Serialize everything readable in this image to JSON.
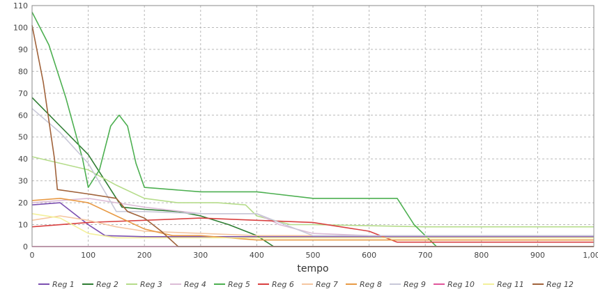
{
  "chart_data": {
    "type": "line",
    "xlabel": "tempo",
    "ylabel": "",
    "xlim": [
      0,
      1000
    ],
    "ylim": [
      0,
      110
    ],
    "xticks": [
      0,
      100,
      200,
      300,
      400,
      500,
      600,
      700,
      800,
      900,
      1000
    ],
    "xtick_labels": [
      "0",
      "100",
      "200",
      "300",
      "400",
      "500",
      "600",
      "700",
      "800",
      "900",
      "1,000"
    ],
    "yticks": [
      0,
      10,
      20,
      30,
      40,
      50,
      60,
      70,
      80,
      90,
      100,
      110
    ],
    "ytick_labels": [
      "0",
      "10",
      "20",
      "30",
      "40",
      "50",
      "60",
      "70",
      "80",
      "90",
      "100",
      "110"
    ],
    "grid": true,
    "legend_position": "bottom",
    "series": [
      {
        "name": "Reg 1",
        "color": "#7b4fb0",
        "points": [
          [
            0,
            19
          ],
          [
            50,
            20
          ],
          [
            100,
            10
          ],
          [
            130,
            5
          ],
          [
            200,
            4.5
          ],
          [
            300,
            4.5
          ],
          [
            400,
            4.5
          ],
          [
            500,
            4.5
          ],
          [
            600,
            4.5
          ],
          [
            700,
            4.5
          ],
          [
            800,
            4.5
          ],
          [
            900,
            4.5
          ],
          [
            1000,
            4.5
          ]
        ]
      },
      {
        "name": "Reg 2",
        "color": "#2e7d32",
        "points": [
          [
            0,
            68
          ],
          [
            50,
            55
          ],
          [
            100,
            42
          ],
          [
            130,
            30
          ],
          [
            160,
            18
          ],
          [
            200,
            17
          ],
          [
            260,
            16
          ],
          [
            300,
            14
          ],
          [
            350,
            10
          ],
          [
            400,
            5
          ],
          [
            430,
            0
          ],
          [
            1000,
            0
          ]
        ]
      },
      {
        "name": "Reg 3",
        "color": "#b5dc8a",
        "points": [
          [
            0,
            41
          ],
          [
            100,
            35
          ],
          [
            150,
            28
          ],
          [
            200,
            22
          ],
          [
            260,
            20
          ],
          [
            330,
            20
          ],
          [
            380,
            19
          ],
          [
            400,
            14
          ],
          [
            460,
            10
          ],
          [
            500,
            10
          ],
          [
            600,
            9.5
          ],
          [
            700,
            9
          ],
          [
            800,
            9
          ],
          [
            900,
            9
          ],
          [
            1000,
            9
          ]
        ]
      },
      {
        "name": "Reg 4",
        "color": "#dcbcd6",
        "points": [
          [
            0,
            20
          ],
          [
            100,
            22
          ],
          [
            200,
            18
          ],
          [
            300,
            15
          ],
          [
            400,
            15
          ],
          [
            440,
            10
          ],
          [
            500,
            6
          ],
          [
            600,
            5
          ],
          [
            700,
            5
          ],
          [
            800,
            5
          ],
          [
            900,
            5
          ],
          [
            1000,
            5
          ]
        ]
      },
      {
        "name": "Reg 5",
        "color": "#4caf50",
        "points": [
          [
            0,
            107
          ],
          [
            30,
            92
          ],
          [
            60,
            68
          ],
          [
            90,
            40
          ],
          [
            100,
            27
          ],
          [
            120,
            35
          ],
          [
            140,
            55
          ],
          [
            155,
            60
          ],
          [
            170,
            55
          ],
          [
            185,
            38
          ],
          [
            200,
            27
          ],
          [
            300,
            25
          ],
          [
            400,
            25
          ],
          [
            500,
            22
          ],
          [
            600,
            22
          ],
          [
            650,
            22
          ],
          [
            680,
            10
          ],
          [
            700,
            5
          ],
          [
            720,
            0
          ],
          [
            1000,
            0
          ]
        ]
      },
      {
        "name": "Reg 6",
        "color": "#d94040",
        "points": [
          [
            0,
            9
          ],
          [
            100,
            11
          ],
          [
            200,
            12
          ],
          [
            300,
            13
          ],
          [
            400,
            12
          ],
          [
            500,
            11
          ],
          [
            600,
            7
          ],
          [
            650,
            2
          ],
          [
            700,
            2
          ],
          [
            800,
            2
          ],
          [
            900,
            2
          ],
          [
            1000,
            2
          ]
        ]
      },
      {
        "name": "Reg 7",
        "color": "#f5c6a0",
        "points": [
          [
            0,
            12
          ],
          [
            50,
            14
          ],
          [
            100,
            12
          ],
          [
            150,
            9
          ],
          [
            200,
            7
          ],
          [
            300,
            6
          ],
          [
            400,
            5
          ],
          [
            500,
            5
          ],
          [
            600,
            5
          ],
          [
            700,
            5
          ],
          [
            800,
            5
          ],
          [
            900,
            5
          ],
          [
            1000,
            5
          ]
        ]
      },
      {
        "name": "Reg 8",
        "color": "#e89a45",
        "points": [
          [
            0,
            21
          ],
          [
            50,
            22
          ],
          [
            100,
            20
          ],
          [
            150,
            14
          ],
          [
            200,
            8
          ],
          [
            250,
            5
          ],
          [
            300,
            5
          ],
          [
            400,
            3
          ],
          [
            500,
            3
          ],
          [
            600,
            3
          ],
          [
            700,
            3
          ],
          [
            800,
            3
          ],
          [
            900,
            3
          ],
          [
            1000,
            3
          ]
        ]
      },
      {
        "name": "Reg 9",
        "color": "#c8c8d8",
        "points": [
          [
            0,
            63
          ],
          [
            50,
            52
          ],
          [
            100,
            38
          ],
          [
            150,
            16
          ],
          [
            200,
            16
          ],
          [
            300,
            15
          ],
          [
            400,
            15
          ],
          [
            450,
            10
          ],
          [
            500,
            5
          ],
          [
            600,
            5
          ],
          [
            700,
            5
          ],
          [
            800,
            5
          ],
          [
            900,
            5
          ],
          [
            1000,
            5
          ]
        ]
      },
      {
        "name": "Reg 10",
        "color": "#e0559a",
        "points": [
          [
            0,
            0
          ],
          [
            100,
            0
          ],
          [
            200,
            0
          ],
          [
            300,
            0
          ],
          [
            400,
            0
          ],
          [
            500,
            0
          ],
          [
            600,
            0
          ],
          [
            700,
            0
          ],
          [
            800,
            0
          ],
          [
            900,
            0
          ],
          [
            1000,
            0
          ]
        ]
      },
      {
        "name": "Reg 11",
        "color": "#f3f09a",
        "points": [
          [
            0,
            15
          ],
          [
            50,
            13
          ],
          [
            100,
            6
          ],
          [
            150,
            4
          ],
          [
            200,
            4
          ],
          [
            300,
            4
          ],
          [
            400,
            4
          ],
          [
            500,
            4
          ],
          [
            600,
            4
          ],
          [
            700,
            4
          ],
          [
            800,
            4
          ],
          [
            900,
            4
          ],
          [
            1000,
            4
          ]
        ]
      },
      {
        "name": "Reg 12",
        "color": "#a0623a",
        "points": [
          [
            0,
            101
          ],
          [
            20,
            75
          ],
          [
            40,
            40
          ],
          [
            45,
            26
          ],
          [
            100,
            24
          ],
          [
            150,
            22
          ],
          [
            170,
            16
          ],
          [
            200,
            13
          ],
          [
            230,
            7
          ],
          [
            260,
            0
          ],
          [
            1000,
            0
          ]
        ]
      }
    ]
  }
}
